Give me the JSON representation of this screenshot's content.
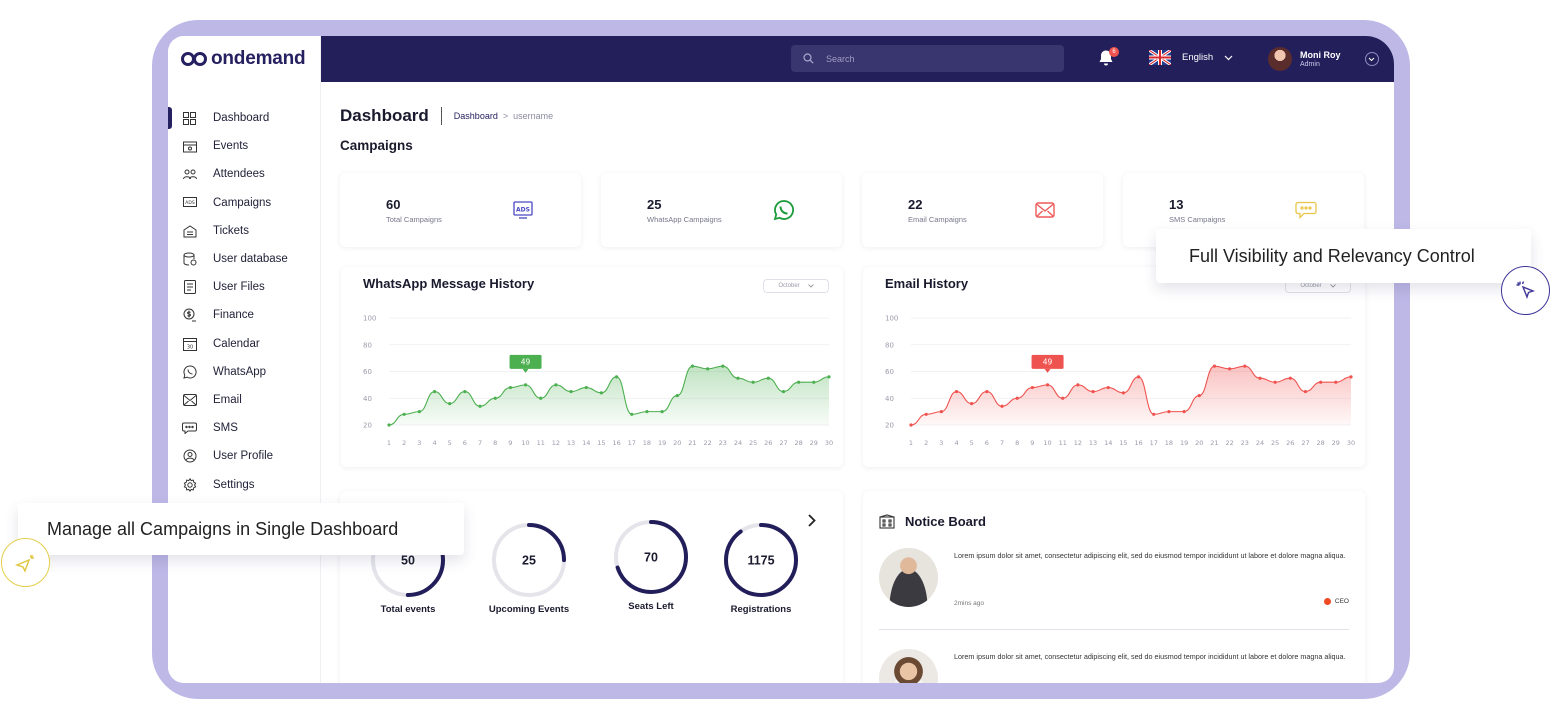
{
  "brand": {
    "name": "ondemand"
  },
  "sidebar": {
    "items": [
      {
        "label": "Dashboard",
        "icon": "dashboard-grid-icon",
        "active": true
      },
      {
        "label": "Events",
        "icon": "events-icon"
      },
      {
        "label": "Attendees",
        "icon": "attendees-icon"
      },
      {
        "label": "Campaigns",
        "icon": "ads-icon"
      },
      {
        "label": "Tickets",
        "icon": "tickets-icon"
      },
      {
        "label": "User database",
        "icon": "database-icon"
      },
      {
        "label": "User Files",
        "icon": "files-icon"
      },
      {
        "label": "Finance",
        "icon": "finance-icon"
      },
      {
        "label": "Calendar",
        "icon": "calendar-icon"
      },
      {
        "label": "WhatsApp",
        "icon": "whatsapp-icon"
      },
      {
        "label": "Email",
        "icon": "email-icon"
      },
      {
        "label": "SMS",
        "icon": "sms-icon"
      },
      {
        "label": "User Profile",
        "icon": "user-profile-icon"
      },
      {
        "label": "Settings",
        "icon": "settings-icon"
      }
    ]
  },
  "topbar": {
    "search_placeholder": "Search",
    "notification_count": "6",
    "language": "English",
    "user_name": "Moni Roy",
    "user_role": "Admin"
  },
  "page": {
    "title": "Dashboard",
    "breadcrumb_root": "Dashboard",
    "breadcrumb_sep": ">",
    "breadcrumb_leaf": "username",
    "section_title": "Campaigns"
  },
  "stats": [
    {
      "value": "60",
      "label": "Total Campaigns",
      "icon": "ads-icon",
      "color": "#4a49c4"
    },
    {
      "value": "25",
      "label": "WhatsApp Campaigns",
      "icon": "whatsapp-icon",
      "color": "#1c9b3a"
    },
    {
      "value": "22",
      "label": "Email Campaigns",
      "icon": "email-icon",
      "color": "#ef5a5a"
    },
    {
      "value": "13",
      "label": "SMS Campaigns",
      "icon": "sms-icon",
      "color": "#e8c547"
    }
  ],
  "whatsapp_card": {
    "title": "WhatsApp Message History",
    "month": "October",
    "peak_label": "49"
  },
  "email_card": {
    "title": "Email History",
    "month": "October",
    "peak_label": "49"
  },
  "chart_data": [
    {
      "type": "area",
      "title": "WhatsApp Message History",
      "x": [
        1,
        2,
        3,
        4,
        5,
        6,
        7,
        8,
        9,
        10,
        11,
        12,
        13,
        14,
        15,
        16,
        17,
        18,
        19,
        20,
        21,
        22,
        23,
        24,
        25,
        26,
        27,
        28,
        29,
        30
      ],
      "values": [
        20,
        28,
        30,
        45,
        36,
        45,
        34,
        40,
        48,
        50,
        40,
        50,
        45,
        48,
        44,
        56,
        28,
        30,
        30,
        42,
        64,
        62,
        64,
        55,
        52,
        55,
        45,
        52,
        52,
        56
      ],
      "ylim": [
        20,
        100
      ],
      "yticks": [
        20,
        40,
        60,
        80,
        100
      ],
      "annotation": "49",
      "color": "#4caf50",
      "grid": true
    },
    {
      "type": "area",
      "title": "Email History",
      "x": [
        1,
        2,
        3,
        4,
        5,
        6,
        7,
        8,
        9,
        10,
        11,
        12,
        13,
        14,
        15,
        16,
        17,
        18,
        19,
        20,
        21,
        22,
        23,
        24,
        25,
        26,
        27,
        28,
        29,
        30
      ],
      "values": [
        20,
        28,
        30,
        45,
        36,
        45,
        34,
        40,
        48,
        50,
        40,
        50,
        45,
        48,
        44,
        56,
        28,
        30,
        30,
        42,
        64,
        62,
        64,
        55,
        52,
        55,
        45,
        52,
        52,
        56
      ],
      "ylim": [
        20,
        100
      ],
      "yticks": [
        20,
        40,
        60,
        80,
        100
      ],
      "annotation": "49",
      "color": "#ef5350",
      "grid": true
    }
  ],
  "events_summary": [
    {
      "value": "50",
      "label": "Total events",
      "fraction": 0.5
    },
    {
      "value": "25",
      "label": "Upcoming Events",
      "fraction": 0.25
    },
    {
      "value": "70",
      "label": "Seats Left",
      "fraction": 0.7
    },
    {
      "value": "1175",
      "label": "Registrations",
      "fraction": 0.9
    }
  ],
  "notice_board": {
    "title": "Notice Board",
    "items": [
      {
        "message": "Lorem ipsum dolor sit amet, consectetur adipiscing elit, sed do eiusmod tempor incididunt ut labore et dolore magna aliqua.",
        "time": "2mins ago",
        "role": "CEO"
      },
      {
        "message": "Lorem ipsum dolor sit amet, consectetur adipiscing elit, sed do eiusmod tempor incididunt ut labore et dolore magna aliqua."
      }
    ]
  },
  "callouts": {
    "right": "Full Visibility and Relevancy Control",
    "left": "Manage all Campaigns in Single Dashboard"
  }
}
